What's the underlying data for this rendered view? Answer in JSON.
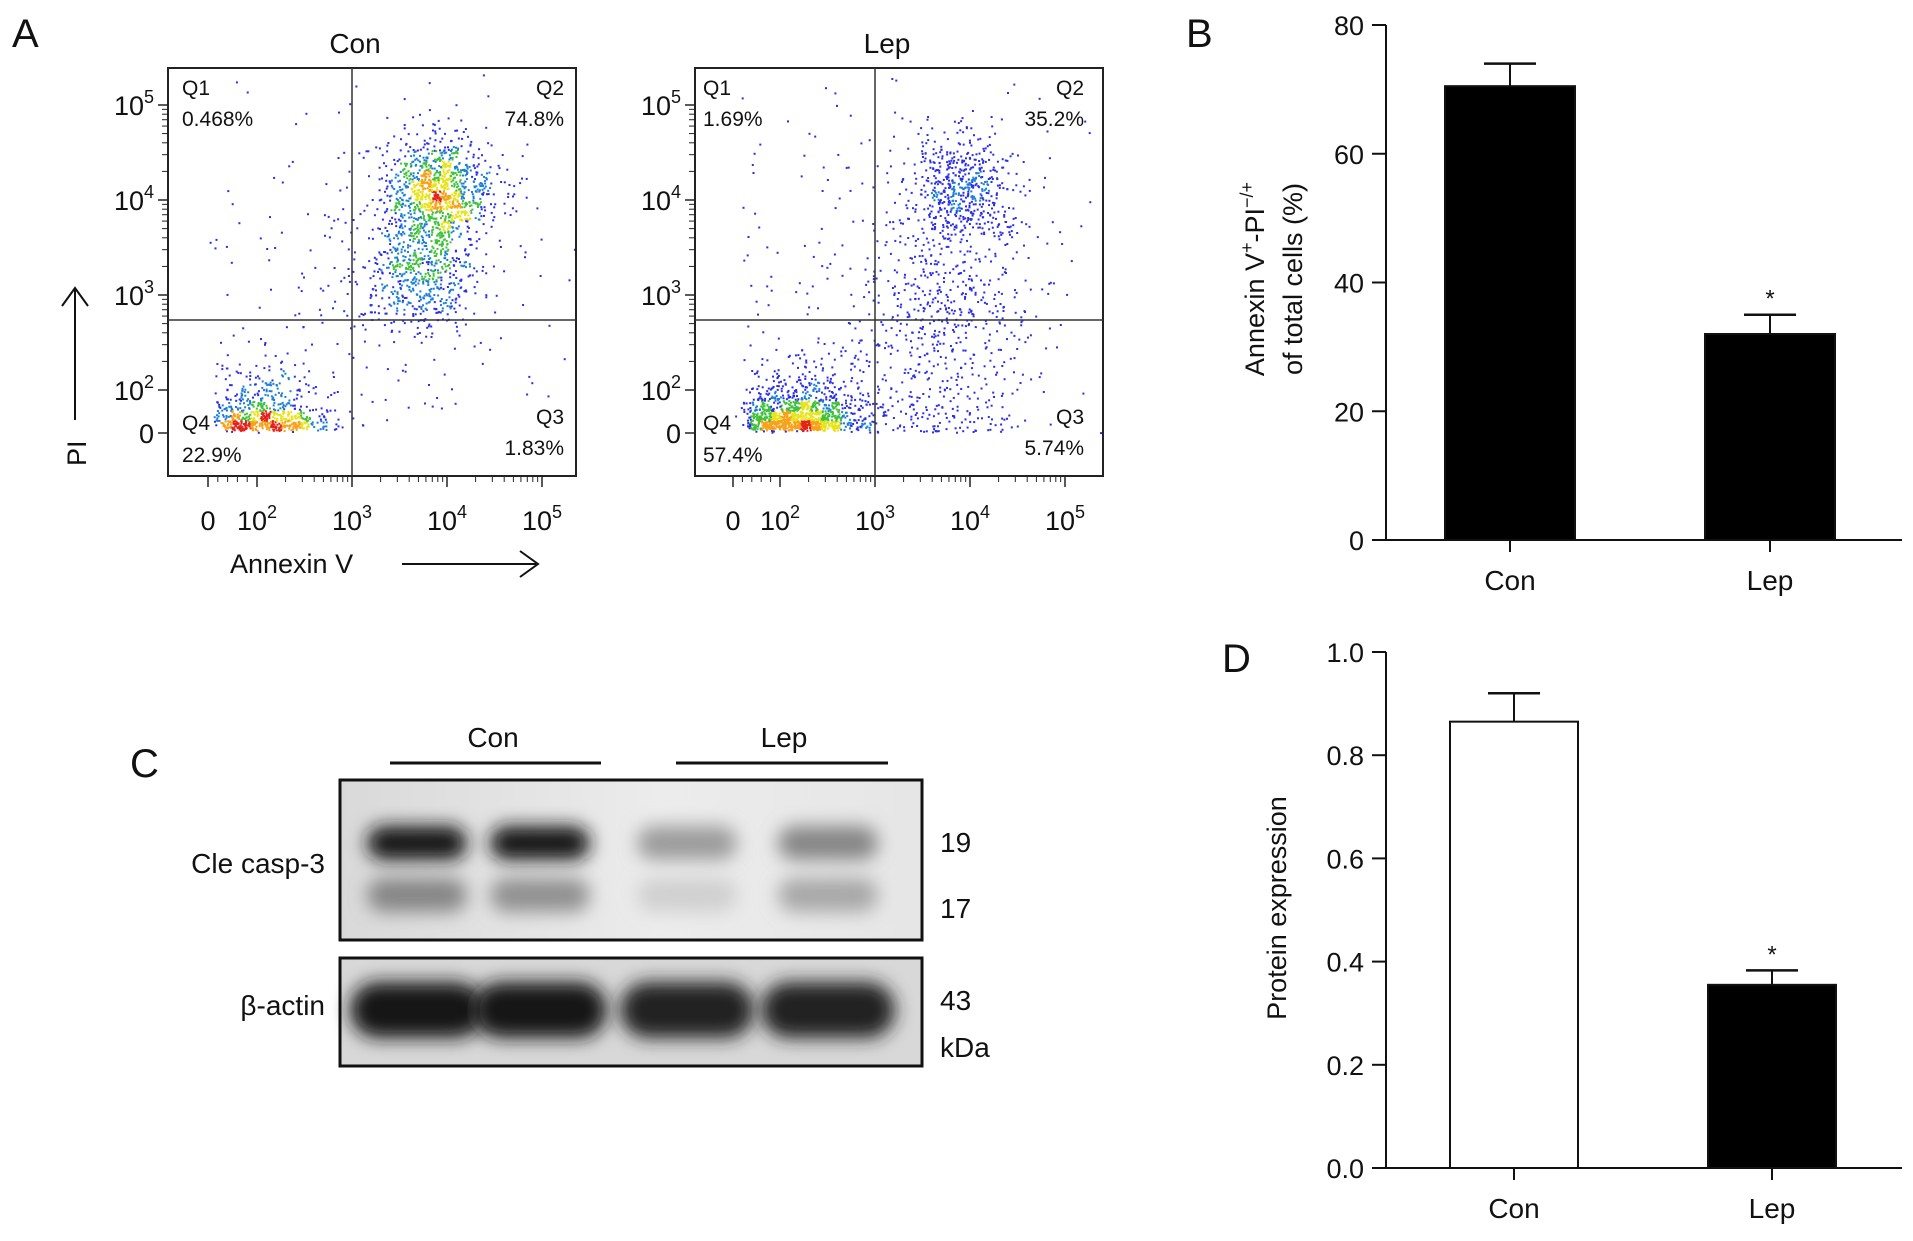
{
  "panel_labels": {
    "a": "A",
    "b": "B",
    "c": "C",
    "d": "D"
  },
  "chart_data": [
    {
      "type": "scatter",
      "panel": "A",
      "title": "Con",
      "xlabel": "Annexin V",
      "ylabel": "PI",
      "x_ticks": [
        "0",
        "10^2",
        "10^3",
        "10^4",
        "10^5"
      ],
      "y_ticks": [
        "0",
        "10^2",
        "10^3",
        "10^4",
        "10^5"
      ],
      "quadrants": [
        {
          "name": "Q1",
          "value": "0.468%"
        },
        {
          "name": "Q2",
          "value": "74.8%"
        },
        {
          "name": "Q3",
          "value": "1.83%"
        },
        {
          "name": "Q4",
          "value": "22.9%"
        }
      ],
      "clusters": [
        {
          "x": 120,
          "y": 40,
          "spread": 0.35,
          "count": 700
        },
        {
          "x": 8000,
          "y": 12000,
          "spread": 0.28,
          "count": 1100
        },
        {
          "x": 5000,
          "y": 1500,
          "spread": 0.3,
          "count": 500
        },
        {
          "x": 3000,
          "y": 3000,
          "spread": 0.9,
          "count": 260
        }
      ]
    },
    {
      "type": "scatter",
      "panel": "A",
      "title": "Lep",
      "xlabel": "",
      "ylabel": "",
      "x_ticks": [
        "0",
        "10^2",
        "10^3",
        "10^4",
        "10^5"
      ],
      "y_ticks": [
        "0",
        "10^2",
        "10^3",
        "10^4",
        "10^5"
      ],
      "quadrants": [
        {
          "name": "Q1",
          "value": "1.69%"
        },
        {
          "name": "Q2",
          "value": "35.2%"
        },
        {
          "name": "Q3",
          "value": "5.74%"
        },
        {
          "name": "Q4",
          "value": "57.4%"
        }
      ],
      "clusters": [
        {
          "x": 150,
          "y": 40,
          "spread": 0.3,
          "count": 1200
        },
        {
          "x": 8000,
          "y": 13000,
          "spread": 0.28,
          "count": 550
        },
        {
          "x": 6000,
          "y": 1000,
          "spread": 0.45,
          "count": 300
        },
        {
          "x": 3000,
          "y": 80,
          "spread": 0.6,
          "count": 320
        },
        {
          "x": 2000,
          "y": 2000,
          "spread": 1.0,
          "count": 250
        }
      ]
    },
    {
      "type": "bar",
      "panel": "B",
      "categories": [
        "Con",
        "Lep"
      ],
      "values": [
        70.5,
        32
      ],
      "errors": [
        3.5,
        3
      ],
      "significance": [
        "",
        "*"
      ],
      "fills": [
        "#000000",
        "#000000"
      ],
      "ylabel_line1": "Annexin V",
      "ylabel_sup1": "+",
      "ylabel_mid": "-PI",
      "ylabel_sup2": "−/+",
      "ylabel_line2": "of total cells (%)",
      "ylim": [
        0,
        80
      ],
      "yticks": [
        0,
        20,
        40,
        60,
        80
      ]
    },
    {
      "type": "bar",
      "panel": "D",
      "categories": [
        "Con",
        "Lep"
      ],
      "values": [
        0.865,
        0.355
      ],
      "errors": [
        0.055,
        0.028
      ],
      "significance": [
        "",
        "*"
      ],
      "fills": [
        "#ffffff",
        "#000000"
      ],
      "ylabel": "Protein expression",
      "ylim": [
        0,
        1.0
      ],
      "yticks": [
        "0.0",
        "0.2",
        "0.4",
        "0.6",
        "0.8",
        "1.0"
      ]
    }
  ],
  "western_blot": {
    "groups": [
      "Con",
      "Lep"
    ],
    "rows": [
      {
        "label": "Cle casp-3",
        "sizes": [
          "19",
          "17"
        ]
      },
      {
        "label": "β-actin",
        "sizes": [
          "43"
        ]
      }
    ],
    "unit": "kDa",
    "band_intensity_upper": [
      0.95,
      0.95,
      0.35,
      0.45
    ],
    "band_intensity_lower": [
      0.45,
      0.4,
      0.12,
      0.3
    ],
    "band_intensity_actin": [
      0.95,
      0.95,
      0.9,
      0.9
    ]
  }
}
